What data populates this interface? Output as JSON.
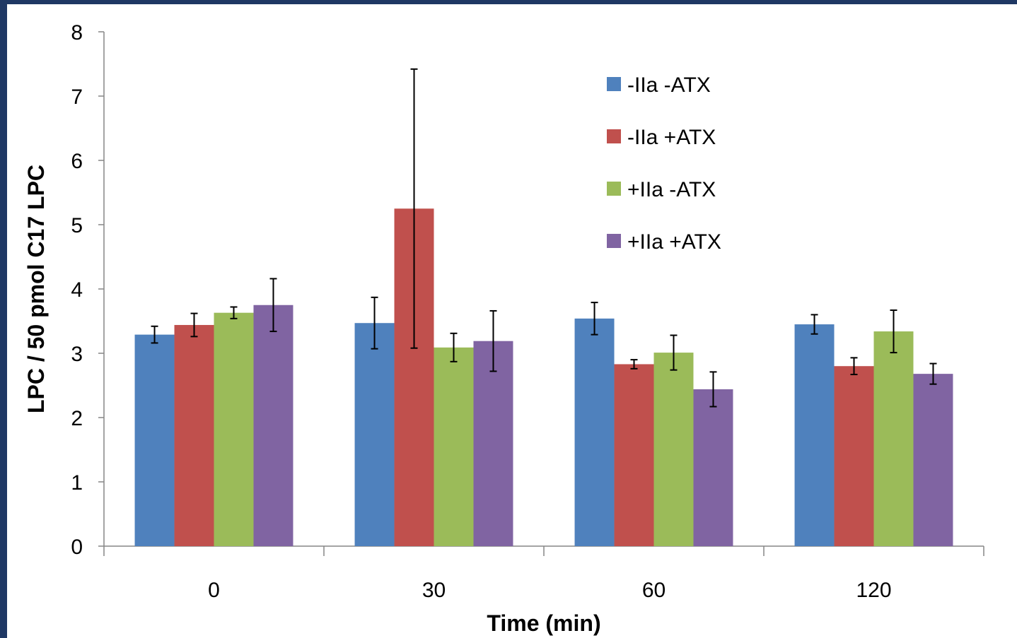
{
  "chart_data": {
    "type": "bar",
    "xlabel": "Time (min)",
    "ylabel": "LPC / 50 pmol C17 LPC",
    "ylim": [
      0,
      8
    ],
    "yticks": [
      "0",
      "1",
      "2",
      "3",
      "4",
      "5",
      "6",
      "7",
      "8"
    ],
    "categories": [
      "0",
      "30",
      "60",
      "120"
    ],
    "grid": false,
    "legend_position": "top-right",
    "series": [
      {
        "name": "-IIa -ATX",
        "color": "#4f81bd",
        "values": [
          3.29,
          3.47,
          3.54,
          3.45
        ],
        "error": [
          0.13,
          0.4,
          0.25,
          0.15
        ]
      },
      {
        "name": "-IIa +ATX",
        "color": "#c0504d",
        "values": [
          3.44,
          5.25,
          2.83,
          2.8
        ],
        "error": [
          0.18,
          2.17,
          0.07,
          0.13
        ]
      },
      {
        "name": "+IIa -ATX",
        "color": "#9bbb59",
        "values": [
          3.63,
          3.09,
          3.01,
          3.34
        ],
        "error": [
          0.09,
          0.22,
          0.27,
          0.33
        ]
      },
      {
        "name": "+IIa +ATX",
        "color": "#8064a2",
        "values": [
          3.75,
          3.19,
          2.44,
          2.68
        ],
        "error": [
          0.41,
          0.47,
          0.27,
          0.16
        ]
      }
    ]
  }
}
